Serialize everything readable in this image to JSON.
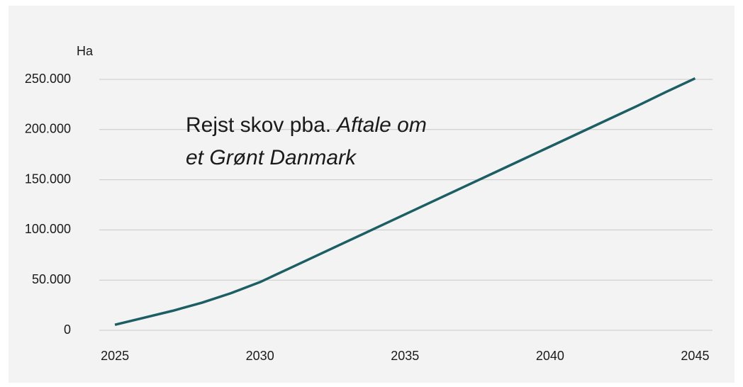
{
  "chart_data": {
    "type": "line",
    "y_label": "Ha",
    "annotation": {
      "lines": [
        {
          "normal": "Rejst skov pba.",
          "italic": "Aftale om"
        },
        {
          "italic": "et Grønt Danmark"
        }
      ]
    },
    "x": [
      2025,
      2026,
      2027,
      2028,
      2029,
      2030,
      2031,
      2032,
      2033,
      2034,
      2035,
      2036,
      2037,
      2038,
      2039,
      2040,
      2041,
      2042,
      2043,
      2044,
      2045
    ],
    "series": [
      {
        "color": "#1c5e63",
        "values": [
          5500,
          12500,
          19500,
          27500,
          37000,
          48000,
          61500,
          75000,
          88500,
          102000,
          115500,
          129000,
          142500,
          156000,
          169500,
          183000,
          196500,
          210000,
          223500,
          237500,
          251000
        ]
      }
    ],
    "xlim": [
      2024.46,
      2045.6
    ],
    "xticks": [
      2025,
      2030,
      2035,
      2040,
      2045
    ],
    "ylim": [
      0,
      250000
    ],
    "yticks": [
      0,
      {
        "value": 50000,
        "label": "50.000"
      },
      {
        "value": 100000,
        "label": "100.000"
      },
      {
        "value": 150000,
        "label": "150.000"
      },
      {
        "value": 200000,
        "label": "200.000"
      },
      {
        "value": 250000,
        "label": "250.000"
      }
    ],
    "grid": true
  }
}
